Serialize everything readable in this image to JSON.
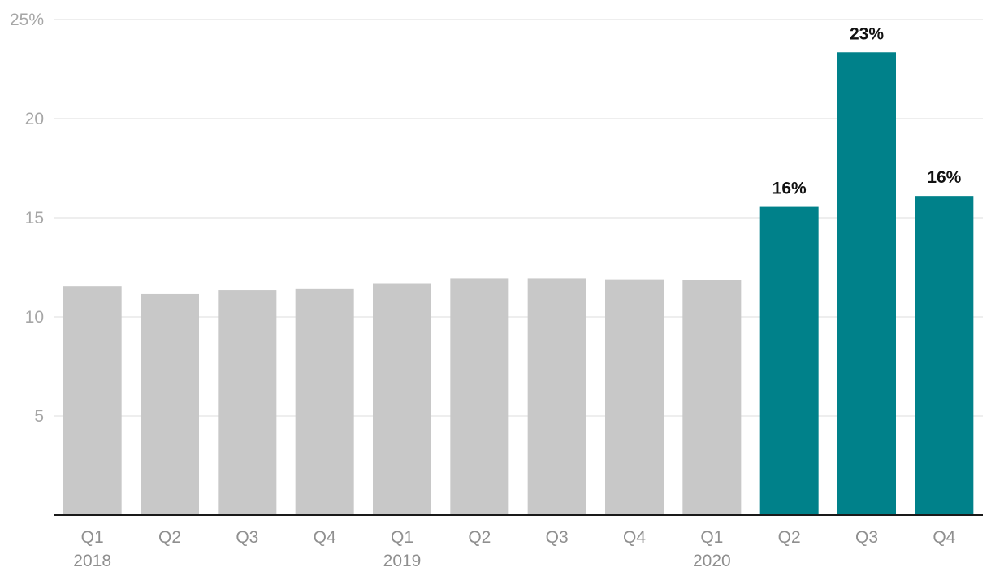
{
  "chart_data": {
    "type": "bar",
    "title": "",
    "xlabel": "",
    "ylabel": "",
    "ylim": [
      0,
      25
    ],
    "y_ticks": [
      {
        "value": 5,
        "label": "5"
      },
      {
        "value": 10,
        "label": "10"
      },
      {
        "value": 15,
        "label": "15"
      },
      {
        "value": 20,
        "label": "20"
      },
      {
        "value": 25,
        "label": "25%"
      }
    ],
    "grid": true,
    "categories": [
      {
        "quarter": "Q1",
        "year": "2018"
      },
      {
        "quarter": "Q2",
        "year": ""
      },
      {
        "quarter": "Q3",
        "year": ""
      },
      {
        "quarter": "Q4",
        "year": ""
      },
      {
        "quarter": "Q1",
        "year": "2019"
      },
      {
        "quarter": "Q2",
        "year": ""
      },
      {
        "quarter": "Q3",
        "year": ""
      },
      {
        "quarter": "Q4",
        "year": ""
      },
      {
        "quarter": "Q1",
        "year": "2020"
      },
      {
        "quarter": "Q2",
        "year": ""
      },
      {
        "quarter": "Q3",
        "year": ""
      },
      {
        "quarter": "Q4",
        "year": ""
      }
    ],
    "values": [
      11.55,
      11.15,
      11.35,
      11.4,
      11.7,
      11.95,
      11.95,
      11.9,
      11.85,
      15.55,
      23.35,
      16.1
    ],
    "highlighted": [
      false,
      false,
      false,
      false,
      false,
      false,
      false,
      false,
      false,
      true,
      true,
      true
    ],
    "data_labels": [
      "",
      "",
      "",
      "",
      "",
      "",
      "",
      "",
      "",
      "16%",
      "23%",
      "16%"
    ],
    "colors": {
      "default_bar": "#c8c8c8",
      "highlight_bar": "#00818a",
      "grid": "#e3e3e3",
      "baseline": "#1a1a1a"
    }
  }
}
